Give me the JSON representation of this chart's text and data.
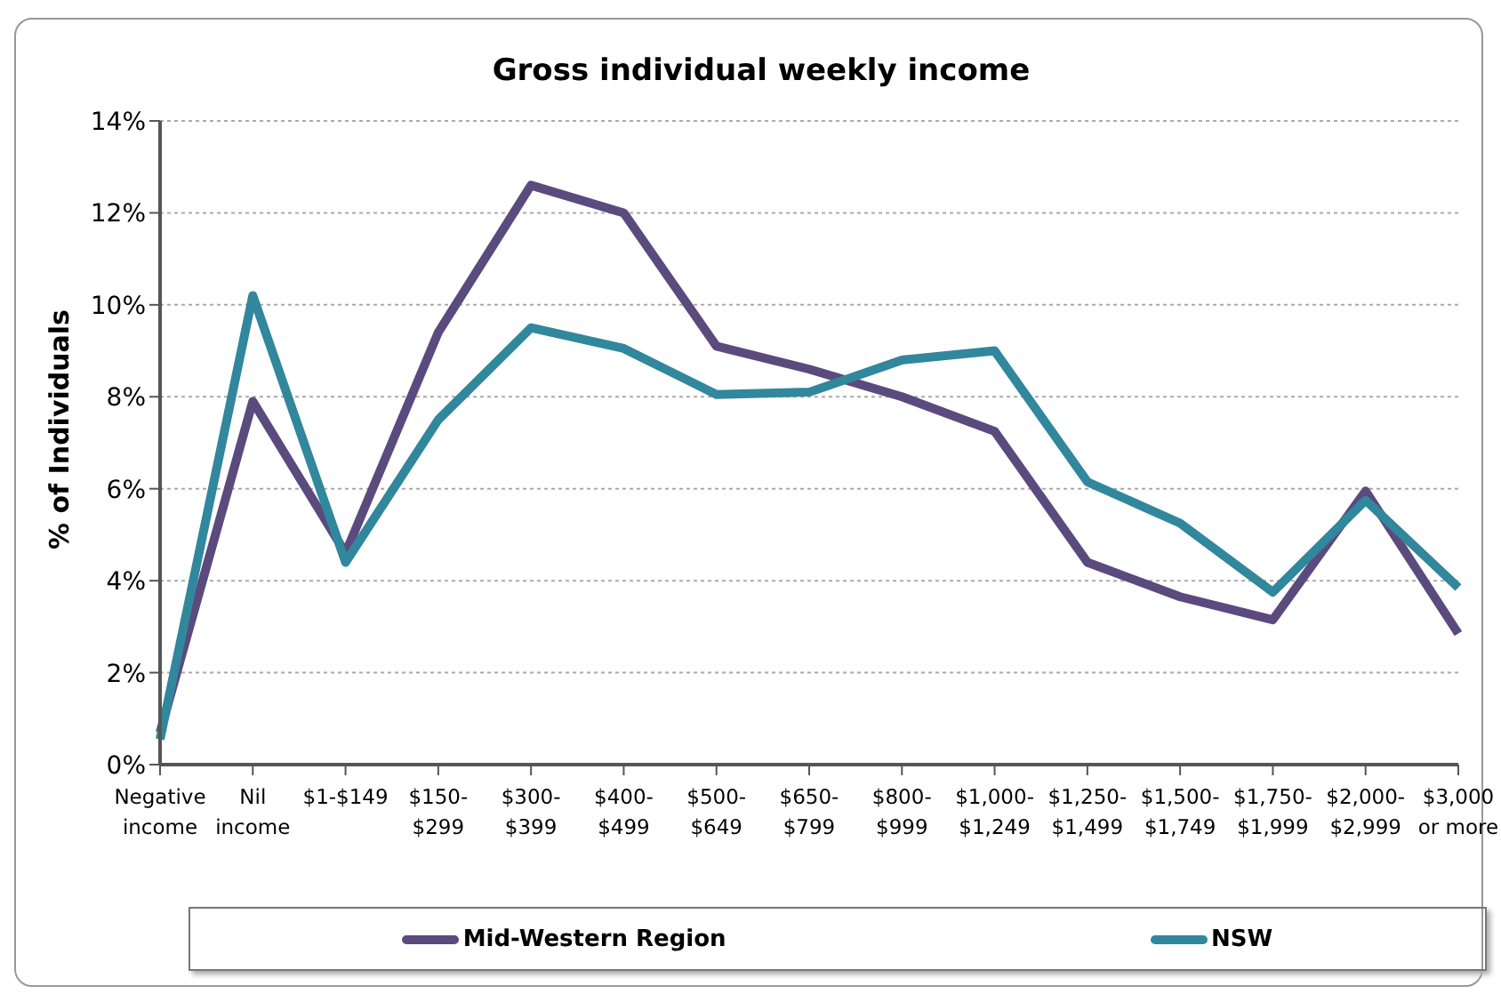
{
  "chart_data": {
    "type": "line",
    "title": "Gross individual weekly income",
    "ylabel": "% of Individuals",
    "categories": [
      "Negative income",
      "Nil income",
      "$1-$149",
      "$150-$299",
      "$300-$399",
      "$400-$499",
      "$500-$649",
      "$650-$799",
      "$800-$999",
      "$1,000-$1,249",
      "$1,250-$1,499",
      "$1,500-$1,749",
      "$1,750-$1,999",
      "$2,000-$2,999",
      "$3,000 or more"
    ],
    "series": [
      {
        "name": "Mid-Western Region",
        "color": "#5b4a7e",
        "values": [
          0.7,
          7.9,
          4.6,
          9.4,
          12.6,
          12.0,
          9.1,
          8.6,
          8.0,
          7.25,
          4.4,
          3.65,
          3.15,
          5.95,
          2.85
        ]
      },
      {
        "name": "NSW",
        "color": "#31879c",
        "values": [
          0.55,
          10.2,
          4.4,
          7.5,
          9.5,
          9.05,
          8.05,
          8.1,
          8.8,
          9.0,
          6.15,
          5.25,
          3.75,
          5.75,
          3.85
        ]
      }
    ],
    "ylim": [
      0,
      14
    ],
    "yticks": [
      {
        "value": 0,
        "label": "0%"
      },
      {
        "value": 2,
        "label": "2%"
      },
      {
        "value": 4,
        "label": "4%"
      },
      {
        "value": 6,
        "label": "6%"
      },
      {
        "value": 8,
        "label": "8%"
      },
      {
        "value": 10,
        "label": "10%"
      },
      {
        "value": 12,
        "label": "12%"
      },
      {
        "value": 14,
        "label": "14%"
      }
    ],
    "grid": "y",
    "legend": "bottom",
    "marker": "none",
    "line_style": "solid"
  }
}
